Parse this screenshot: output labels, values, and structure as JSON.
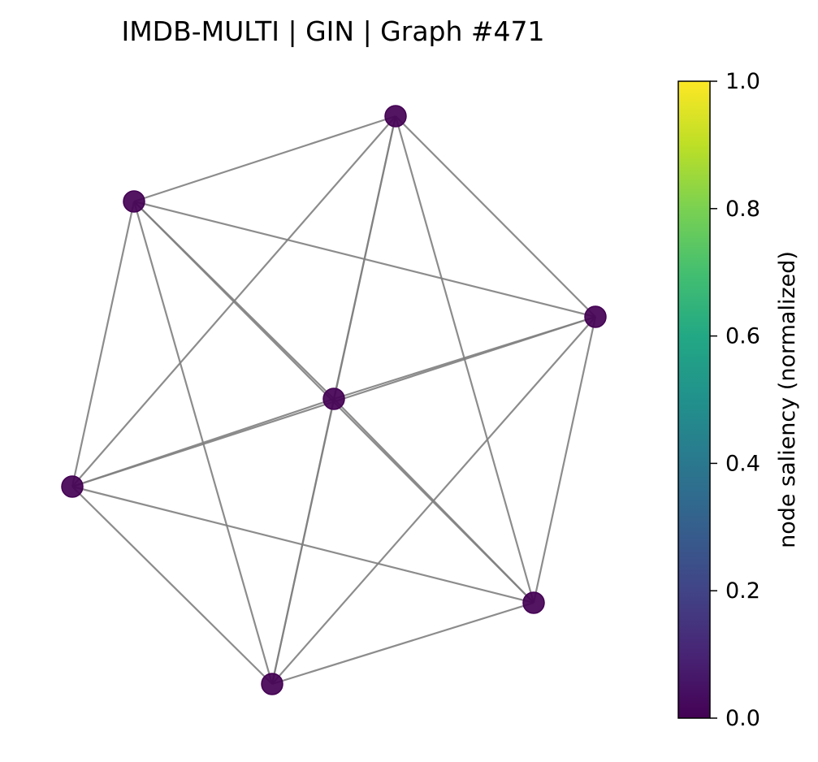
{
  "title": "IMDB-MULTI | GIN | Graph #471",
  "colorbar": {
    "label": "node saliency (normalized)",
    "colormap": "viridis",
    "range": [
      0.0,
      1.0
    ],
    "ticks": [
      "0.0",
      "0.2",
      "0.4",
      "0.6",
      "0.8",
      "1.0"
    ]
  },
  "graph": {
    "nodes": [
      {
        "id": "center",
        "saliency": 0.0,
        "color": "#440154"
      },
      {
        "id": "top",
        "saliency": 0.0,
        "color": "#440154"
      },
      {
        "id": "upper-left",
        "saliency": 0.0,
        "color": "#440154"
      },
      {
        "id": "right",
        "saliency": 0.0,
        "color": "#440154"
      },
      {
        "id": "left",
        "saliency": 0.0,
        "color": "#440154"
      },
      {
        "id": "lower-right",
        "saliency": 0.0,
        "color": "#440154"
      },
      {
        "id": "bottom",
        "saliency": 0.0,
        "color": "#440154"
      }
    ],
    "edges": [
      [
        "top",
        "upper-left"
      ],
      [
        "top",
        "right"
      ],
      [
        "top",
        "center"
      ],
      [
        "top",
        "left"
      ],
      [
        "top",
        "lower-right"
      ],
      [
        "top",
        "bottom"
      ],
      [
        "upper-left",
        "right"
      ],
      [
        "upper-left",
        "center"
      ],
      [
        "upper-left",
        "left"
      ],
      [
        "upper-left",
        "lower-right"
      ],
      [
        "upper-left",
        "bottom"
      ],
      [
        "right",
        "center"
      ],
      [
        "right",
        "left"
      ],
      [
        "right",
        "lower-right"
      ],
      [
        "right",
        "bottom"
      ],
      [
        "center",
        "left"
      ],
      [
        "center",
        "lower-right"
      ],
      [
        "center",
        "bottom"
      ],
      [
        "left",
        "lower-right"
      ],
      [
        "left",
        "bottom"
      ],
      [
        "lower-right",
        "bottom"
      ]
    ],
    "edge_color": "#808080"
  }
}
